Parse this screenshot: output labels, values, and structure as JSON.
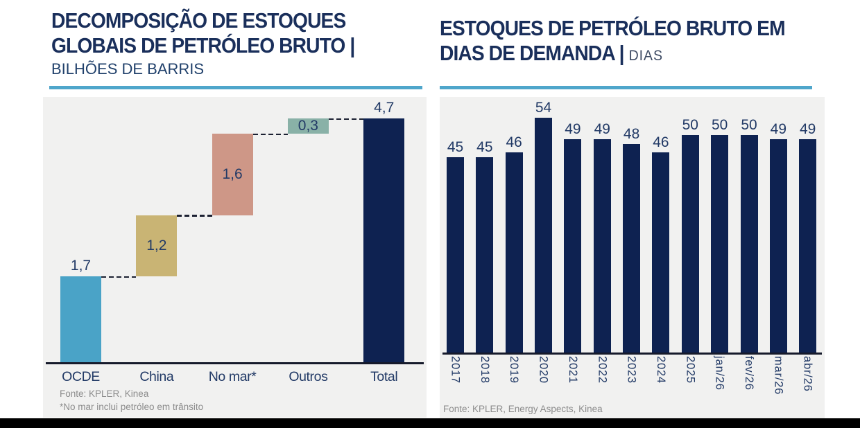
{
  "left": {
    "title_line1": "DECOMPOSIÇÃO DE ESTOQUES",
    "title_line2": "GLOBAIS DE PETRÓLEO BRUTO |",
    "subtitle": "BILHÕES DE BARRIS",
    "source": "Fonte: KPLER, Kinea",
    "footnote": "*No mar inclui petróleo em trânsito"
  },
  "right": {
    "title_line1": "ESTOQUES DE PETRÓLEO BRUTO EM",
    "title_line2_bold": "DIAS DE DEMANDA |",
    "title_line2_light": "DIAS",
    "source": "Fonte: KPLER, Energy Aspects, Kinea"
  },
  "colors": {
    "title_navy": "#1A2F5B",
    "label_navy": "#223A66",
    "bar_navy": "#0E2251",
    "axis": "#161A2B",
    "source_gray": "#8C8C8C",
    "accent_rule": "#4FA6CB",
    "panel_bg": "#F1F1F0",
    "bottom_bar": "#000000"
  },
  "chart_data": [
    {
      "type": "bar",
      "subtype": "waterfall",
      "title": "DECOMPOSIÇÃO DE ESTOQUES GLOBAIS DE PETRÓLEO BRUTO",
      "unit": "BILHÕES DE BARRIS",
      "categories": [
        "OCDE",
        "China",
        "No mar*",
        "Outros",
        "Total"
      ],
      "values": [
        1.7,
        1.2,
        1.6,
        0.3,
        4.7
      ],
      "value_labels": [
        "1,7",
        "1,2",
        "1,6",
        "0,3",
        "4,7"
      ],
      "is_total": [
        false,
        false,
        false,
        false,
        true
      ],
      "label_position": [
        "above",
        "inside",
        "inside",
        "inside",
        "above"
      ],
      "bar_colors": [
        "#4AA3C7",
        "#C9B474",
        "#CE9787",
        "#89B1A7",
        "#0E2251"
      ],
      "connectors": "dashed",
      "ylim": [
        0,
        5
      ],
      "grid": false,
      "legend": false
    },
    {
      "type": "bar",
      "title": "ESTOQUES DE PETRÓLEO BRUTO EM DIAS DE DEMANDA",
      "unit": "DIAS",
      "categories": [
        "2017",
        "2018",
        "2019",
        "2020",
        "2021",
        "2022",
        "2023",
        "2024",
        "2025",
        "jan/26",
        "fev/26",
        "mar/26",
        "abr/26"
      ],
      "values": [
        45,
        45,
        46,
        54,
        49,
        49,
        48,
        46,
        50,
        50,
        50,
        49,
        49
      ],
      "bar_color": "#0E2251",
      "value_labels_shown": true,
      "xtick_rotation": 90,
      "ylim": [
        0,
        58
      ],
      "grid": false,
      "legend": false
    }
  ]
}
